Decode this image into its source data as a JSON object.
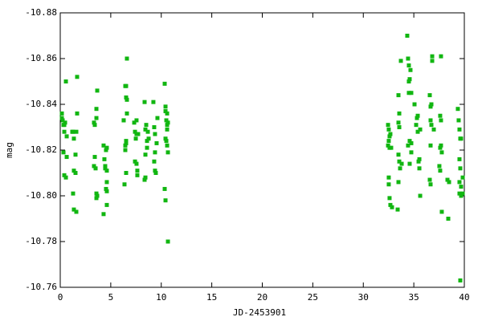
{
  "chart_data": {
    "type": "scatter",
    "xlabel": "JD-2453901",
    "ylabel": "mag",
    "color": "#11b611",
    "xlim": [
      0,
      40
    ],
    "xticks": [
      0,
      5,
      10,
      15,
      20,
      25,
      30,
      35,
      40
    ],
    "ylim": [
      -10.76,
      -10.88
    ],
    "yticks": [
      -10.88,
      -10.86,
      -10.84,
      -10.82,
      {
        "value": -10.8,
        "label": "-10.80"
      },
      -10.78,
      -10.76
    ],
    "x": [
      0.16,
      0.16,
      0.24,
      0.32,
      0.4,
      0.4,
      0.32,
      0.4,
      0.56,
      0.56,
      0.64,
      0.64,
      0.48,
      1.19,
      1.27,
      1.35,
      1.35,
      1.51,
      1.67,
      1.51,
      1.59,
      1.27,
      1.35,
      1.59,
      1.67,
      3.34,
      3.42,
      3.58,
      3.58,
      3.66,
      3.42,
      3.34,
      3.5,
      3.58,
      3.58,
      3.66,
      4.29,
      4.45,
      4.45,
      4.37,
      4.61,
      4.61,
      4.53,
      4.61,
      4.61,
      4.53,
      4.61,
      4.29,
      6.28,
      6.36,
      6.44,
      6.52,
      6.52,
      6.6,
      6.6,
      6.44,
      6.52,
      6.52,
      6.44,
      6.52,
      6.6,
      6.28,
      7.32,
      7.4,
      7.55,
      7.4,
      7.55,
      7.63,
      7.63,
      7.71,
      7.55,
      7.48,
      8.35,
      8.43,
      8.51,
      8.43,
      8.35,
      8.43,
      8.59,
      8.59,
      8.67,
      8.75,
      9.22,
      9.3,
      9.38,
      9.38,
      9.3,
      9.38,
      9.46,
      9.54,
      9.62,
      10.34,
      10.42,
      10.42,
      10.58,
      10.5,
      10.58,
      10.66,
      10.58,
      10.42,
      10.5,
      10.58,
      10.34,
      10.42,
      10.66,
      10.66,
      32.45,
      32.52,
      32.6,
      32.68,
      32.52,
      32.45,
      32.6,
      32.76,
      32.52,
      32.52,
      32.6,
      32.68,
      32.84,
      33.4,
      33.48,
      33.56,
      33.48,
      33.56,
      33.48,
      33.56,
      33.64,
      33.72,
      33.8,
      33.48,
      34.35,
      34.43,
      34.51,
      34.59,
      34.51,
      34.67,
      34.51,
      34.75,
      34.59,
      34.75,
      34.43,
      34.75,
      34.59,
      35.07,
      35.31,
      35.39,
      35.47,
      35.55,
      35.55,
      35.63,
      35.63,
      35.39,
      35.23,
      36.58,
      36.66,
      36.74,
      36.66,
      36.82,
      36.82,
      36.58,
      36.66,
      36.66,
      36.74,
      36.98,
      37.61,
      37.69,
      37.61,
      37.69,
      37.77,
      37.53,
      37.61,
      37.77,
      37.69,
      38.33,
      38.41,
      38.49,
      39.36,
      39.44,
      39.52,
      39.6,
      39.68,
      39.52,
      39.6,
      39.52,
      39.68,
      39.52,
      39.68,
      39.84,
      39.6,
      39.84
    ],
    "values": [
      -10.836,
      -10.834,
      -10.833,
      -10.831,
      -10.831,
      -10.828,
      -10.819,
      -10.809,
      -10.808,
      -10.85,
      -10.817,
      -10.826,
      -10.832,
      -10.828,
      -10.828,
      -10.825,
      -10.811,
      -10.81,
      -10.836,
      -10.818,
      -10.828,
      -10.801,
      -10.794,
      -10.793,
      -10.852,
      -10.832,
      -10.831,
      -10.838,
      -10.834,
      -10.846,
      -10.817,
      -10.813,
      -10.812,
      -10.801,
      -10.799,
      -10.8,
      -10.822,
      -10.813,
      -10.812,
      -10.816,
      -10.811,
      -10.821,
      -10.82,
      -10.806,
      -10.802,
      -10.803,
      -10.796,
      -10.792,
      -10.833,
      -10.805,
      -10.848,
      -10.848,
      -10.843,
      -10.842,
      -10.836,
      -10.822,
      -10.823,
      -10.824,
      -10.82,
      -10.81,
      -10.86,
      -10.833,
      -10.832,
      -10.828,
      -10.827,
      -10.815,
      -10.814,
      -10.811,
      -10.809,
      -10.827,
      -10.833,
      -10.825,
      -10.841,
      -10.829,
      -10.831,
      -10.818,
      -10.807,
      -10.808,
      -10.821,
      -10.824,
      -10.828,
      -10.825,
      -10.841,
      -10.83,
      -10.827,
      -10.819,
      -10.815,
      -10.811,
      -10.81,
      -10.823,
      -10.834,
      -10.849,
      -10.839,
      -10.837,
      -10.836,
      -10.833,
      -10.831,
      -10.832,
      -10.829,
      -10.825,
      -10.824,
      -10.822,
      -10.803,
      -10.798,
      -10.78,
      -10.819,
      -10.831,
      -10.829,
      -10.826,
      -10.827,
      -10.824,
      -10.822,
      -10.821,
      -10.821,
      -10.808,
      -10.805,
      -10.799,
      -10.796,
      -10.795,
      -10.794,
      -10.844,
      -10.836,
      -10.832,
      -10.83,
      -10.818,
      -10.815,
      -10.812,
      -10.859,
      -10.814,
      -10.806,
      -10.87,
      -10.86,
      -10.857,
      -10.851,
      -10.85,
      -10.855,
      -10.845,
      -10.845,
      -10.824,
      -10.823,
      -10.822,
      -10.819,
      -10.814,
      -10.84,
      -10.834,
      -10.835,
      -10.815,
      -10.816,
      -10.812,
      -10.8,
      -10.829,
      -10.828,
      -10.831,
      -10.844,
      -10.839,
      -10.84,
      -10.833,
      -10.859,
      -10.861,
      -10.807,
      -10.805,
      -10.822,
      -10.831,
      -10.829,
      -10.835,
      -10.833,
      -10.821,
      -10.822,
      -10.819,
      -10.813,
      -10.811,
      -10.793,
      -10.861,
      -10.807,
      -10.79,
      -10.806,
      -10.838,
      -10.833,
      -10.829,
      -10.825,
      -10.825,
      -10.816,
      -10.812,
      -10.806,
      -10.804,
      -10.801,
      -10.8,
      -10.808,
      -10.763,
      -10.801
    ]
  }
}
